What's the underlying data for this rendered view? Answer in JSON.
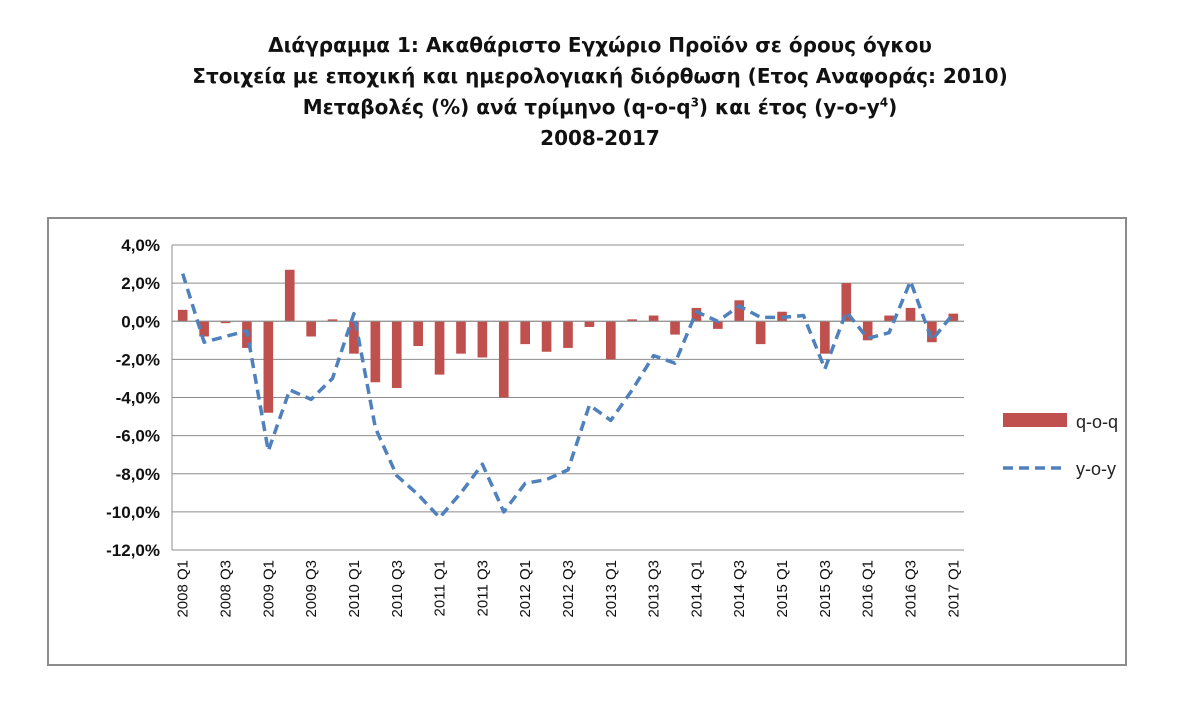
{
  "title": {
    "line1": "Διάγραμμα 1: Ακαθάριστο Εγχώριο Προϊόν σε όρους όγκου",
    "line2": "Στοιχεία με εποχική και ημερολογιακή διόρθωση (Ετος Αναφοράς: 2010)",
    "line3_main": "Μεταβολές (%) ανά τρίμηνο (q-o-q",
    "line3_sup1": "3",
    "line3_mid": ") και έτος (y-o-y",
    "line3_sup2": "4",
    "line3_end": ")",
    "line4": "2008-2017"
  },
  "colors": {
    "bar": "#c0504d",
    "line": "#4f81bd",
    "grid": "#8c8c8c",
    "axis": "#8c8c8c"
  },
  "chart_data": {
    "type": "bar",
    "ylim": [
      -12,
      4
    ],
    "yticks": [
      4,
      2,
      0,
      -2,
      -4,
      -6,
      -8,
      -10,
      -12
    ],
    "ytick_labels": [
      "4,0%",
      "2,0%",
      "0,0%",
      "-2,0%",
      "-4,0%",
      "-6,0%",
      "-8,0%",
      "-10,0%",
      "-12,0%"
    ],
    "grid": true,
    "legend_position": "right",
    "categories": [
      "2008 Q1",
      "2008 Q2",
      "2008 Q3",
      "2008 Q4",
      "2009 Q1",
      "2009 Q2",
      "2009 Q3",
      "2009 Q4",
      "2010 Q1",
      "2010 Q2",
      "2010 Q3",
      "2010 Q4",
      "2011 Q1",
      "2011 Q2",
      "2011 Q3",
      "2011 Q4",
      "2012 Q1",
      "2012 Q2",
      "2012 Q3",
      "2012 Q4",
      "2013 Q1",
      "2013 Q2",
      "2013 Q3",
      "2013 Q4",
      "2014 Q1",
      "2014 Q2",
      "2014 Q3",
      "2014 Q4",
      "2015 Q1",
      "2015 Q2",
      "2015 Q3",
      "2015 Q4",
      "2016 Q1",
      "2016 Q2",
      "2016 Q3",
      "2016 Q4",
      "2017 Q1"
    ],
    "tick_labels_shown": [
      "2008 Q1",
      "",
      "2008 Q3",
      "",
      "2009 Q1",
      "",
      "2009 Q3",
      "",
      "2010 Q1",
      "",
      "2010 Q3",
      "",
      "2011 Q1",
      "",
      "2011 Q3",
      "",
      "2012 Q1",
      "",
      "2012 Q3",
      "",
      "2013 Q1",
      "",
      "2013 Q3",
      "",
      "2014 Q1",
      "",
      "2014 Q3",
      "",
      "2015 Q1",
      "",
      "2015 Q3",
      "",
      "2016 Q1",
      "",
      "2016 Q3",
      "",
      "2017 Q1"
    ],
    "series": [
      {
        "name": "q-o-q",
        "type": "bar",
        "values": [
          0.6,
          -0.8,
          -0.1,
          -1.4,
          -4.8,
          2.7,
          -0.8,
          0.1,
          -1.7,
          -3.2,
          -3.5,
          -1.3,
          -2.8,
          -1.7,
          -1.9,
          -4.0,
          -1.2,
          -1.6,
          -1.4,
          -0.3,
          -2.0,
          0.1,
          0.3,
          -0.7,
          0.7,
          -0.4,
          1.1,
          -1.2,
          0.5,
          0.0,
          -1.7,
          2.0,
          -1.0,
          0.3,
          0.7,
          -1.1,
          0.4
        ]
      },
      {
        "name": "y-o-y",
        "type": "line",
        "style": "dashed",
        "values": [
          2.5,
          -1.1,
          -0.8,
          -0.5,
          -6.8,
          -3.6,
          -4.1,
          -3.0,
          0.4,
          -5.6,
          -8.1,
          -9.1,
          -10.3,
          -9.0,
          -7.5,
          -10.0,
          -8.5,
          -8.3,
          -7.8,
          -4.4,
          -5.2,
          -3.6,
          -1.8,
          -2.2,
          0.5,
          0.0,
          0.8,
          0.2,
          0.2,
          0.3,
          -2.5,
          0.5,
          -0.9,
          -0.6,
          2.1,
          -1.0,
          0.4
        ]
      }
    ]
  }
}
